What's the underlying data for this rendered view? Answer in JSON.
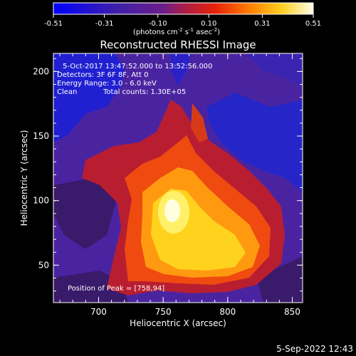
{
  "colorbar": {
    "ticks": [
      "-0.51",
      "-0.31",
      "-0.10",
      "0.10",
      "0.31",
      "0.51"
    ],
    "range": [
      -0.51,
      0.51
    ],
    "units_base": "(photons cm",
    "units_exp1": "-2",
    "units_mid": " s",
    "units_exp2": "-1",
    "units_mid2": " asec",
    "units_exp3": "-2",
    "units_close": ")"
  },
  "chart_data": {
    "type": "heatmap",
    "title": "Reconstructed RHESSI Image",
    "xlabel": "Heliocentric X (arcsec)",
    "ylabel": "Heliocentric Y (arcsec)",
    "xlim": [
      665,
      858
    ],
    "ylim": [
      21,
      214
    ],
    "xticks": [
      700,
      750,
      800,
      850
    ],
    "yticks": [
      50,
      100,
      150,
      200
    ],
    "peak": [
      758,
      94
    ],
    "annotations": {
      "time": "5-Oct-2017 13:47:52.000 to 13:52:56.000",
      "detectors": "Detectors: 3F 6F 8F, Att 0",
      "energy": "Energy Range: 3.0 - 6.0 keV",
      "clean": "Clean",
      "counts": "Total counts: 1.30E+05",
      "peak_label": "Position of Peak = [758,94]"
    }
  },
  "footer": {
    "timestamp": "5-Sep-2022 12:43"
  }
}
